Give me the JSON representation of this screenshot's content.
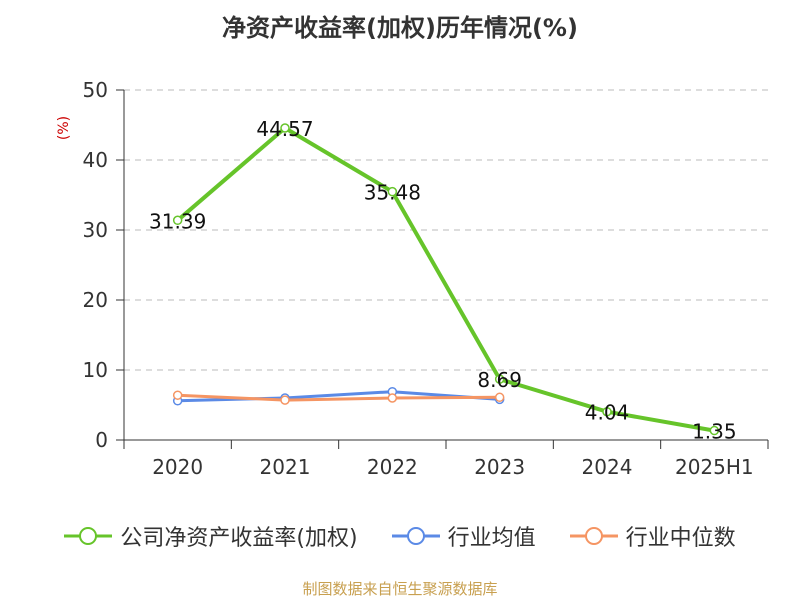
{
  "chart_data": {
    "type": "line",
    "title": "净资产收益率(加权)历年情况(%)",
    "unit_label": "(%)",
    "categories": [
      "2020",
      "2021",
      "2022",
      "2023",
      "2024",
      "2025H1"
    ],
    "ylim": [
      0,
      50
    ],
    "yticks": [
      "0",
      "10",
      "20",
      "30",
      "40",
      "50"
    ],
    "grid": true,
    "legend_position": "bottom",
    "series": [
      {
        "name": "公司净资产收益率(加权)",
        "color": "#66c42a",
        "values": [
          31.39,
          44.57,
          35.48,
          8.69,
          4.04,
          1.35
        ],
        "labels": [
          "31.39",
          "44.57",
          "35.48",
          "8.69",
          "4.04",
          "1.35"
        ]
      },
      {
        "name": "行业均值",
        "color": "#5b8ae6",
        "values": [
          5.6,
          6.0,
          6.9,
          5.8,
          null,
          null
        ]
      },
      {
        "name": "行业中位数",
        "color": "#f59563",
        "values": [
          6.4,
          5.7,
          6.0,
          6.1,
          null,
          null
        ]
      }
    ]
  },
  "source_text": "制图数据来自恒生聚源数据库"
}
